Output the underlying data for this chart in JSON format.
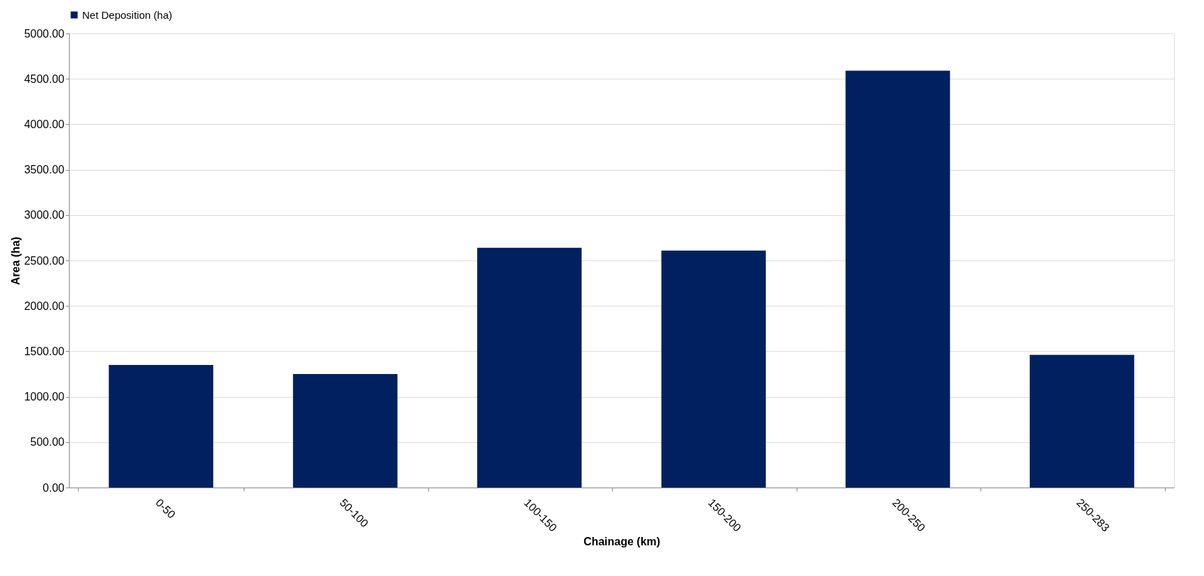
{
  "chart_data": {
    "type": "bar",
    "xlabel": "Chainage (km)",
    "ylabel": "Area (ha)",
    "categories": [
      "0-50",
      "50-100",
      "100-150",
      "150-200",
      "200-250",
      "250-283"
    ],
    "series": [
      {
        "name": "Net Deposition (ha)",
        "color": "#002060",
        "values": [
          1350,
          1250,
          2640,
          2610,
          4590,
          1460
        ]
      }
    ],
    "ylim": [
      0,
      5000
    ],
    "yticks": [
      {
        "value": 0,
        "label": "0.00"
      },
      {
        "value": 500,
        "label": "500.00"
      },
      {
        "value": 1000,
        "label": "1000.00"
      },
      {
        "value": 1500,
        "label": "1500.00"
      },
      {
        "value": 2000,
        "label": "2000.00"
      },
      {
        "value": 2500,
        "label": "2500.00"
      },
      {
        "value": 3000,
        "label": "3000.00"
      },
      {
        "value": 3500,
        "label": "3500.00"
      },
      {
        "value": 4000,
        "label": "4000.00"
      },
      {
        "value": 4500,
        "label": "4500.00"
      },
      {
        "value": 5000,
        "label": "5000.00"
      }
    ],
    "grid": "y",
    "legend": "top"
  }
}
